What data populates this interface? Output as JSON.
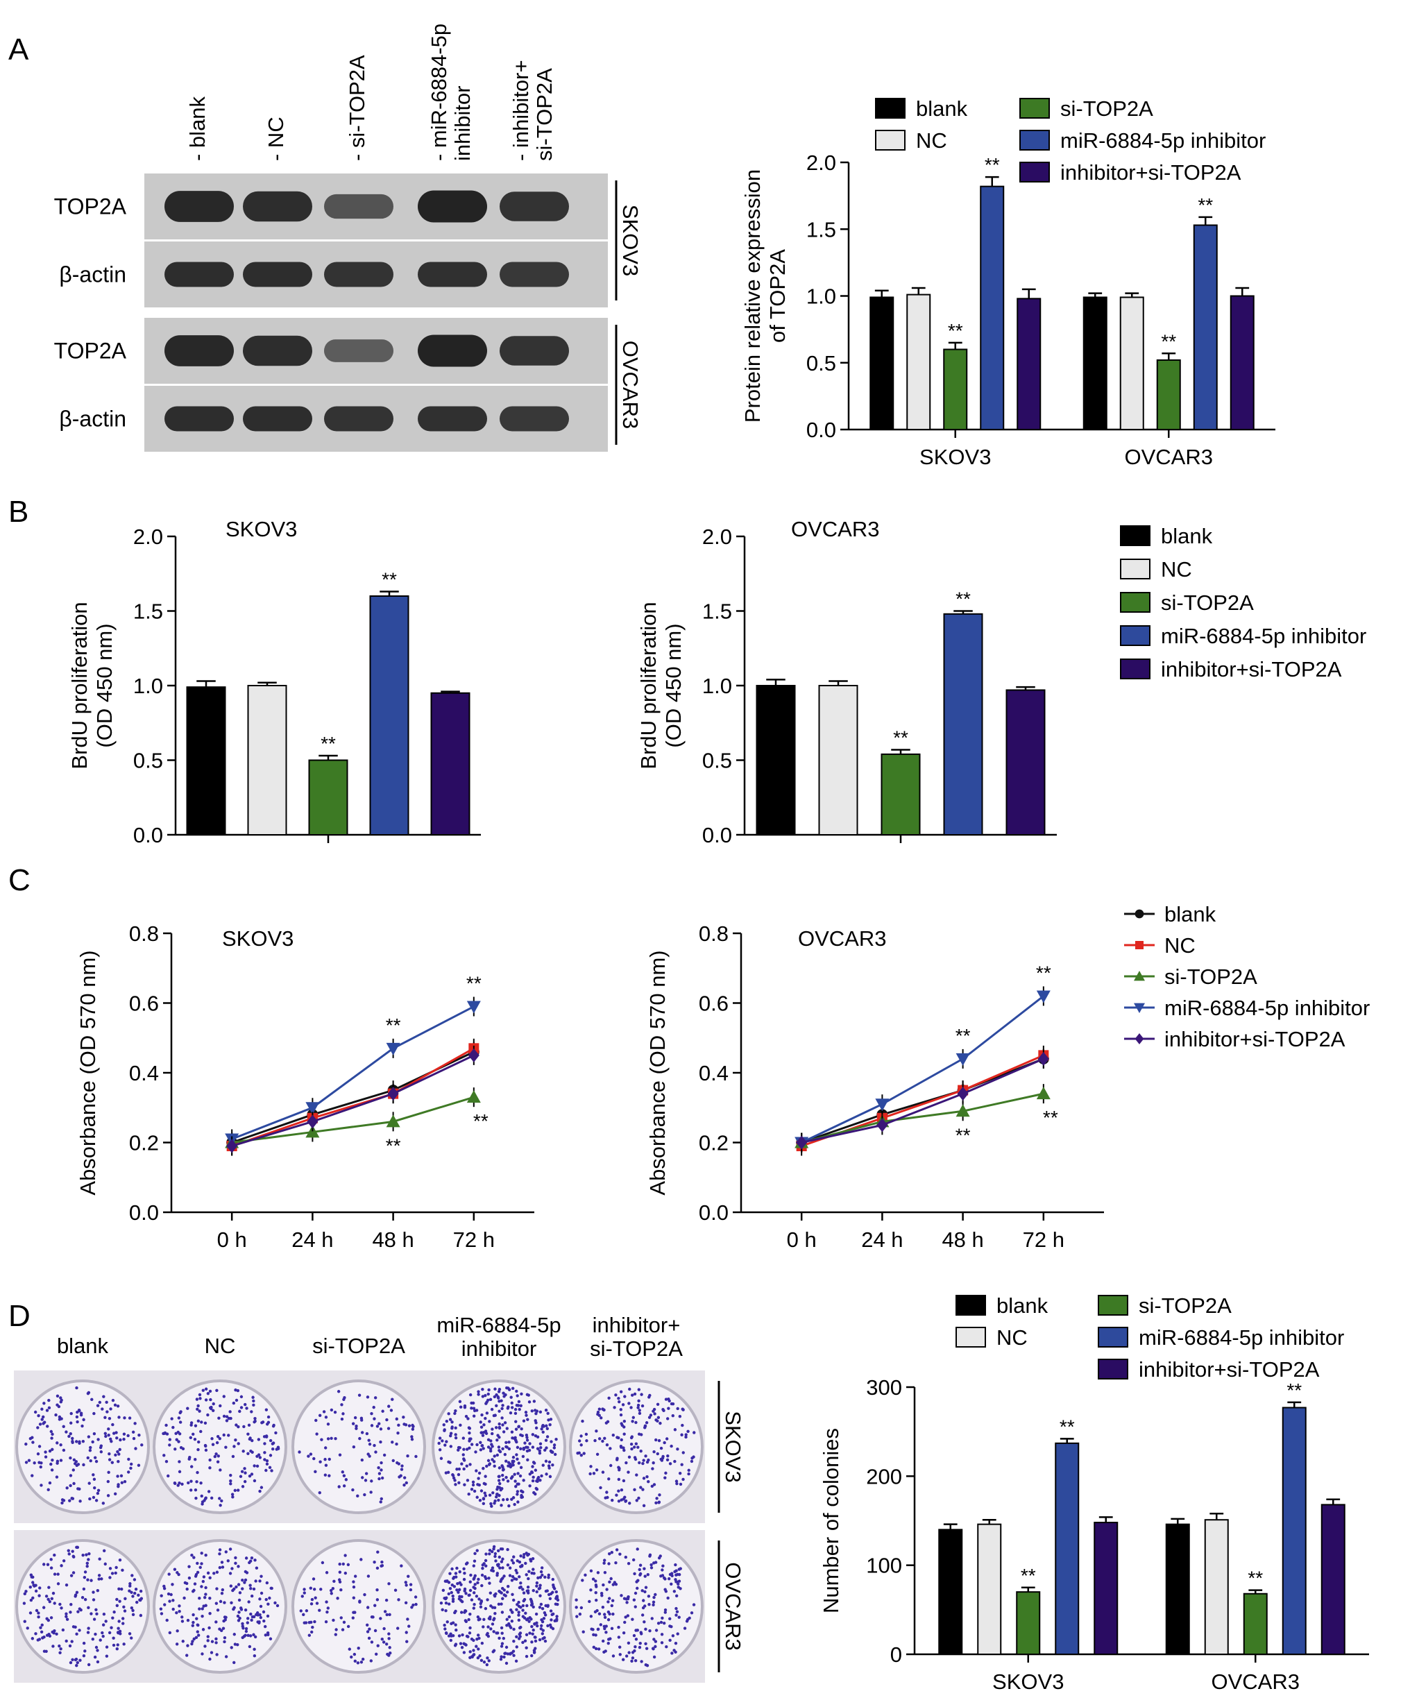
{
  "panels": {
    "a": "A",
    "b": "B",
    "c": "C",
    "d": "D"
  },
  "colors": {
    "blank": "#000000",
    "nc": "#e8e8e8",
    "si": "#3d7a24",
    "mir": "#2e4a9c",
    "inh": "#2a0c62",
    "line_blank": "#111111",
    "line_nc": "#e0261e",
    "line_si": "#3f7a25",
    "line_mir": "#2d4aa0",
    "line_inh": "#3a1678"
  },
  "sig_marker": "**",
  "blot": {
    "lanes": [
      "blank",
      "NC",
      "si-TOP2A",
      "miR-6884-5p\ninhibitor",
      "inhibitor+\nsi-TOP2A"
    ],
    "rows": [
      "TOP2A",
      "β-actin",
      "TOP2A",
      "β-actin"
    ],
    "cell_lines": [
      "SKOV3",
      "OVCAR3"
    ]
  },
  "colony": {
    "labels": [
      "blank",
      "NC",
      "si-TOP2A",
      "miR-6884-5p\ninhibitor",
      "inhibitor+\nsi-TOP2A"
    ],
    "cell_lines": [
      "SKOV3",
      "OVCAR3"
    ],
    "relative_density": [
      [
        0.35,
        0.38,
        0.15,
        0.9,
        0.4
      ],
      [
        0.4,
        0.42,
        0.18,
        1.0,
        0.45
      ]
    ]
  },
  "chart_data": [
    {
      "id": "A_right",
      "type": "bar",
      "categories": [
        "SKOV3",
        "OVCAR3"
      ],
      "series": [
        {
          "name": "blank",
          "values": [
            0.99,
            0.99
          ],
          "errors": [
            0.05,
            0.03
          ]
        },
        {
          "name": "NC",
          "values": [
            1.01,
            0.99
          ],
          "errors": [
            0.05,
            0.03
          ]
        },
        {
          "name": "si-TOP2A",
          "values": [
            0.6,
            0.52
          ],
          "errors": [
            0.05,
            0.05
          ]
        },
        {
          "name": "miR-6884-5p inhibitor",
          "values": [
            1.82,
            1.53
          ],
          "errors": [
            0.07,
            0.06
          ]
        },
        {
          "name": "inhibitor+si-TOP2A",
          "values": [
            0.98,
            1.0
          ],
          "errors": [
            0.07,
            0.06
          ]
        }
      ],
      "significant": [
        [
          false,
          false,
          true,
          true,
          false
        ],
        [
          false,
          false,
          true,
          true,
          false
        ]
      ],
      "xlabel": "",
      "ylabel": [
        "Protein relative expression",
        "of TOP2A"
      ],
      "ylim": [
        0,
        2.0
      ],
      "yticks": [
        "0.0",
        "0.5",
        "1.0",
        "1.5",
        "2.0"
      ],
      "legend": "top, two columns"
    },
    {
      "id": "B_left",
      "type": "bar",
      "title": "SKOV3",
      "categories": [
        "blank",
        "NC",
        "si-TOP2A",
        "miR-6884-5p inhibitor",
        "inhibitor+si-TOP2A"
      ],
      "values": [
        0.99,
        1.0,
        0.5,
        1.6,
        0.95
      ],
      "errors": [
        0.04,
        0.02,
        0.03,
        0.03,
        0.01
      ],
      "significant": [
        false,
        false,
        true,
        true,
        false
      ],
      "ylabel": [
        "BrdU proliferation",
        "(OD 450 nm)"
      ],
      "ylim": [
        0,
        2.0
      ],
      "yticks": [
        "0.0",
        "0.5",
        "1.0",
        "1.5",
        "2.0"
      ]
    },
    {
      "id": "B_right",
      "type": "bar",
      "title": "OVCAR3",
      "categories": [
        "blank",
        "NC",
        "si-TOP2A",
        "miR-6884-5p inhibitor",
        "inhibitor+si-TOP2A"
      ],
      "values": [
        1.0,
        1.0,
        0.54,
        1.48,
        0.97
      ],
      "errors": [
        0.04,
        0.03,
        0.03,
        0.02,
        0.02
      ],
      "significant": [
        false,
        false,
        true,
        true,
        false
      ],
      "ylabel": [
        "BrdU proliferation",
        "(OD 450 nm)"
      ],
      "ylim": [
        0,
        2.0
      ],
      "yticks": [
        "0.0",
        "0.5",
        "1.0",
        "1.5",
        "2.0"
      ],
      "legend": [
        "blank",
        "NC",
        "si-TOP2A",
        "miR-6884-5p inhibitor",
        "inhibitor+si-TOP2A"
      ]
    },
    {
      "id": "C_left",
      "type": "line",
      "title": "SKOV3",
      "x": [
        "0 h",
        "24 h",
        "48 h",
        "72 h"
      ],
      "series": [
        {
          "name": "blank",
          "values": [
            0.2,
            0.28,
            0.35,
            0.46
          ],
          "marker": "circle"
        },
        {
          "name": "NC",
          "values": [
            0.19,
            0.27,
            0.34,
            0.47
          ],
          "marker": "square"
        },
        {
          "name": "si-TOP2A",
          "values": [
            0.2,
            0.23,
            0.26,
            0.33
          ],
          "marker": "triangle-up"
        },
        {
          "name": "miR-6884-5p inhibitor",
          "values": [
            0.21,
            0.3,
            0.47,
            0.59
          ],
          "marker": "triangle-down"
        },
        {
          "name": "inhibitor+si-TOP2A",
          "values": [
            0.19,
            0.26,
            0.34,
            0.45
          ],
          "marker": "diamond"
        }
      ],
      "errors": 0.015,
      "sig_above": [
        [
          2,
          3
        ]
      ],
      "sig_below": [
        [
          2,
          3
        ]
      ],
      "ylabel": "Absorbance (OD 570 nm)",
      "ylim": [
        0,
        0.8
      ],
      "yticks": [
        "0.0",
        "0.2",
        "0.4",
        "0.6",
        "0.8"
      ]
    },
    {
      "id": "C_right",
      "type": "line",
      "title": "OVCAR3",
      "x": [
        "0 h",
        "24 h",
        "48 h",
        "72 h"
      ],
      "series": [
        {
          "name": "blank",
          "values": [
            0.2,
            0.28,
            0.35,
            0.44
          ],
          "marker": "circle"
        },
        {
          "name": "NC",
          "values": [
            0.19,
            0.27,
            0.35,
            0.45
          ],
          "marker": "square"
        },
        {
          "name": "si-TOP2A",
          "values": [
            0.2,
            0.26,
            0.29,
            0.34
          ],
          "marker": "triangle-up"
        },
        {
          "name": "miR-6884-5p inhibitor",
          "values": [
            0.2,
            0.31,
            0.44,
            0.62
          ],
          "marker": "triangle-down"
        },
        {
          "name": "inhibitor+si-TOP2A",
          "values": [
            0.2,
            0.25,
            0.34,
            0.44
          ],
          "marker": "diamond"
        }
      ],
      "ylabel": "Absorbance (OD 570 nm)",
      "ylim": [
        0,
        0.8
      ],
      "yticks": [
        "0.0",
        "0.2",
        "0.4",
        "0.6",
        "0.8"
      ],
      "legend": [
        "blank",
        "NC",
        "si-TOP2A",
        "miR-6884-5p inhibitor",
        "inhibitor+si-TOP2A"
      ]
    },
    {
      "id": "D_right",
      "type": "bar",
      "categories": [
        "SKOV3",
        "OVCAR3"
      ],
      "series": [
        {
          "name": "blank",
          "values": [
            140,
            146
          ],
          "errors": [
            6,
            6
          ]
        },
        {
          "name": "NC",
          "values": [
            146,
            151
          ],
          "errors": [
            5,
            7
          ]
        },
        {
          "name": "si-TOP2A",
          "values": [
            70,
            68
          ],
          "errors": [
            5,
            4
          ]
        },
        {
          "name": "miR-6884-5p inhibitor",
          "values": [
            237,
            277
          ],
          "errors": [
            5,
            6
          ]
        },
        {
          "name": "inhibitor+si-TOP2A",
          "values": [
            148,
            168
          ],
          "errors": [
            6,
            6
          ]
        }
      ],
      "significant": [
        [
          false,
          false,
          true,
          true,
          false
        ],
        [
          false,
          false,
          true,
          true,
          false
        ]
      ],
      "ylabel": "Number of colonies",
      "ylim": [
        0,
        300
      ],
      "yticks": [
        "0",
        "100",
        "200",
        "300"
      ],
      "legend": "top, two columns"
    }
  ]
}
